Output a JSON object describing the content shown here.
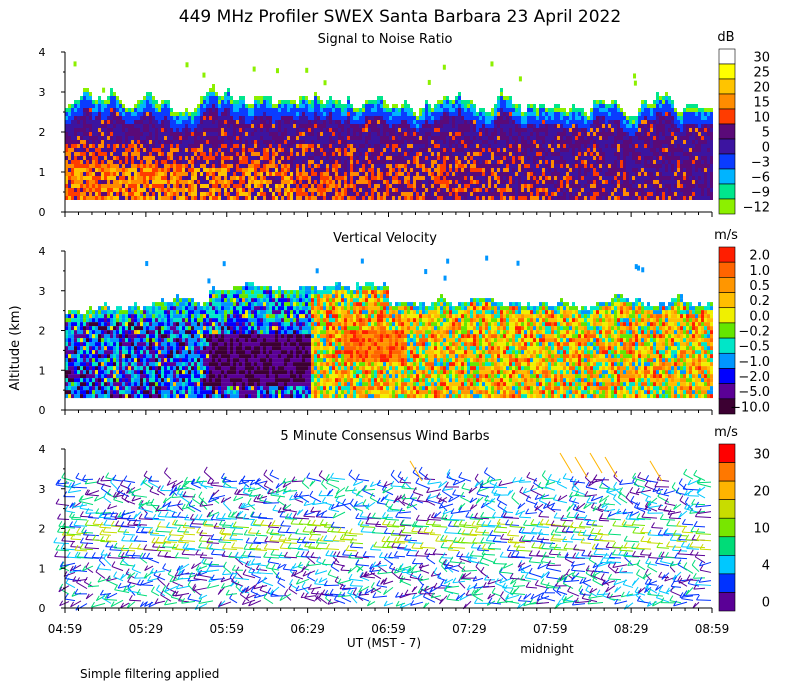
{
  "title": "449 MHz Profiler SWEX Santa Barbara 23 April 2022",
  "footnote": "Simple filtering applied",
  "chart_data": {
    "type": "heatmap",
    "xlabel": "UT  (MST - 7)",
    "x_note": "midnight",
    "x_note_tick": "07:59",
    "ylabel": "Altitude (km)",
    "x_ticks": [
      "04:59",
      "05:29",
      "05:59",
      "06:29",
      "06:59",
      "07:29",
      "07:59",
      "08:29",
      "08:59"
    ],
    "y_ticks": [
      "0",
      "1",
      "2",
      "3",
      "4"
    ],
    "ylim": [
      0,
      4
    ],
    "panels": [
      {
        "key": "snr",
        "title": "Signal to Noise Ratio",
        "unit": "dB",
        "type": "heatmap",
        "colorbar": [
          {
            "label": "30",
            "color": "#ffffff"
          },
          {
            "label": "25",
            "color": "#ffff00"
          },
          {
            "label": "20",
            "color": "#ffc400"
          },
          {
            "label": "15",
            "color": "#ff8c00"
          },
          {
            "label": "10",
            "color": "#ff3c00"
          },
          {
            "label": "5",
            "color": "#5a0a78"
          },
          {
            "label": "0",
            "color": "#3c14a0"
          },
          {
            "label": "−3",
            "color": "#0a3cff"
          },
          {
            "label": "−6",
            "color": "#00b4ff"
          },
          {
            "label": "−9",
            "color": "#00e68c"
          },
          {
            "label": "−12",
            "color": "#8cf000"
          }
        ]
      },
      {
        "key": "vv",
        "title": "Vertical Velocity",
        "unit": "m/s",
        "type": "heatmap",
        "colorbar": [
          {
            "label": "2.0",
            "color": "#ff1e00"
          },
          {
            "label": "1.0",
            "color": "#ff6400"
          },
          {
            "label": "0.5",
            "color": "#ff9600"
          },
          {
            "label": "0.2",
            "color": "#ffbe00"
          },
          {
            "label": "0.0",
            "color": "#f0f000"
          },
          {
            "label": "−0.2",
            "color": "#64e600"
          },
          {
            "label": "−0.5",
            "color": "#00e6c8"
          },
          {
            "label": "−1.0",
            "color": "#0096ff"
          },
          {
            "label": "−2.0",
            "color": "#0000ff"
          },
          {
            "label": "−5.0",
            "color": "#5a0096"
          },
          {
            "label": "−10.0",
            "color": "#3c0032"
          }
        ]
      },
      {
        "key": "wind",
        "title": "5 Minute Consensus Wind Barbs",
        "unit": "m/s",
        "type": "wind_barbs",
        "colorbar": [
          {
            "label": "30",
            "color": "#ff0000"
          },
          {
            "label": "",
            "color": "#ff7800"
          },
          {
            "label": "20",
            "color": "#ffb400"
          },
          {
            "label": "",
            "color": "#c8dc00"
          },
          {
            "label": "10",
            "color": "#78e600"
          },
          {
            "label": "",
            "color": "#00dc78"
          },
          {
            "label": "4",
            "color": "#00c8ff"
          },
          {
            "label": "",
            "color": "#0032ff"
          },
          {
            "label": "0",
            "color": "#5a0096"
          }
        ]
      }
    ]
  }
}
